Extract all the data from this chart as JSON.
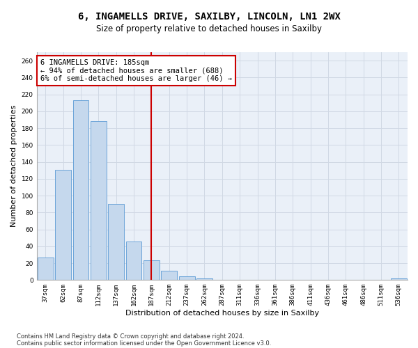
{
  "title1": "6, INGAMELLS DRIVE, SAXILBY, LINCOLN, LN1 2WX",
  "title2": "Size of property relative to detached houses in Saxilby",
  "xlabel": "Distribution of detached houses by size in Saxilby",
  "ylabel": "Number of detached properties",
  "bar_color": "#c5d8ed",
  "bar_edge_color": "#5b9bd5",
  "grid_color": "#d0d8e4",
  "background_color": "#eaf0f8",
  "vline_color": "#cc0000",
  "categories": [
    "37sqm",
    "62sqm",
    "87sqm",
    "112sqm",
    "137sqm",
    "162sqm",
    "187sqm",
    "212sqm",
    "237sqm",
    "262sqm",
    "287sqm",
    "311sqm",
    "336sqm",
    "361sqm",
    "386sqm",
    "411sqm",
    "436sqm",
    "461sqm",
    "486sqm",
    "511sqm",
    "536sqm"
  ],
  "values": [
    27,
    131,
    213,
    188,
    90,
    46,
    23,
    11,
    4,
    2,
    0,
    0,
    0,
    0,
    0,
    0,
    0,
    0,
    0,
    0,
    2
  ],
  "ylim": [
    0,
    270
  ],
  "yticks": [
    0,
    20,
    40,
    60,
    80,
    100,
    120,
    140,
    160,
    180,
    200,
    220,
    240,
    260
  ],
  "annotation_title": "6 INGAMELLS DRIVE: 185sqm",
  "annotation_line1": "← 94% of detached houses are smaller (688)",
  "annotation_line2": "6% of semi-detached houses are larger (46) →",
  "footer1": "Contains HM Land Registry data © Crown copyright and database right 2024.",
  "footer2": "Contains public sector information licensed under the Open Government Licence v3.0.",
  "title1_fontsize": 10,
  "title2_fontsize": 8.5,
  "xlabel_fontsize": 8,
  "ylabel_fontsize": 8,
  "tick_fontsize": 6.5,
  "footer_fontsize": 6,
  "annotation_fontsize": 7.5
}
